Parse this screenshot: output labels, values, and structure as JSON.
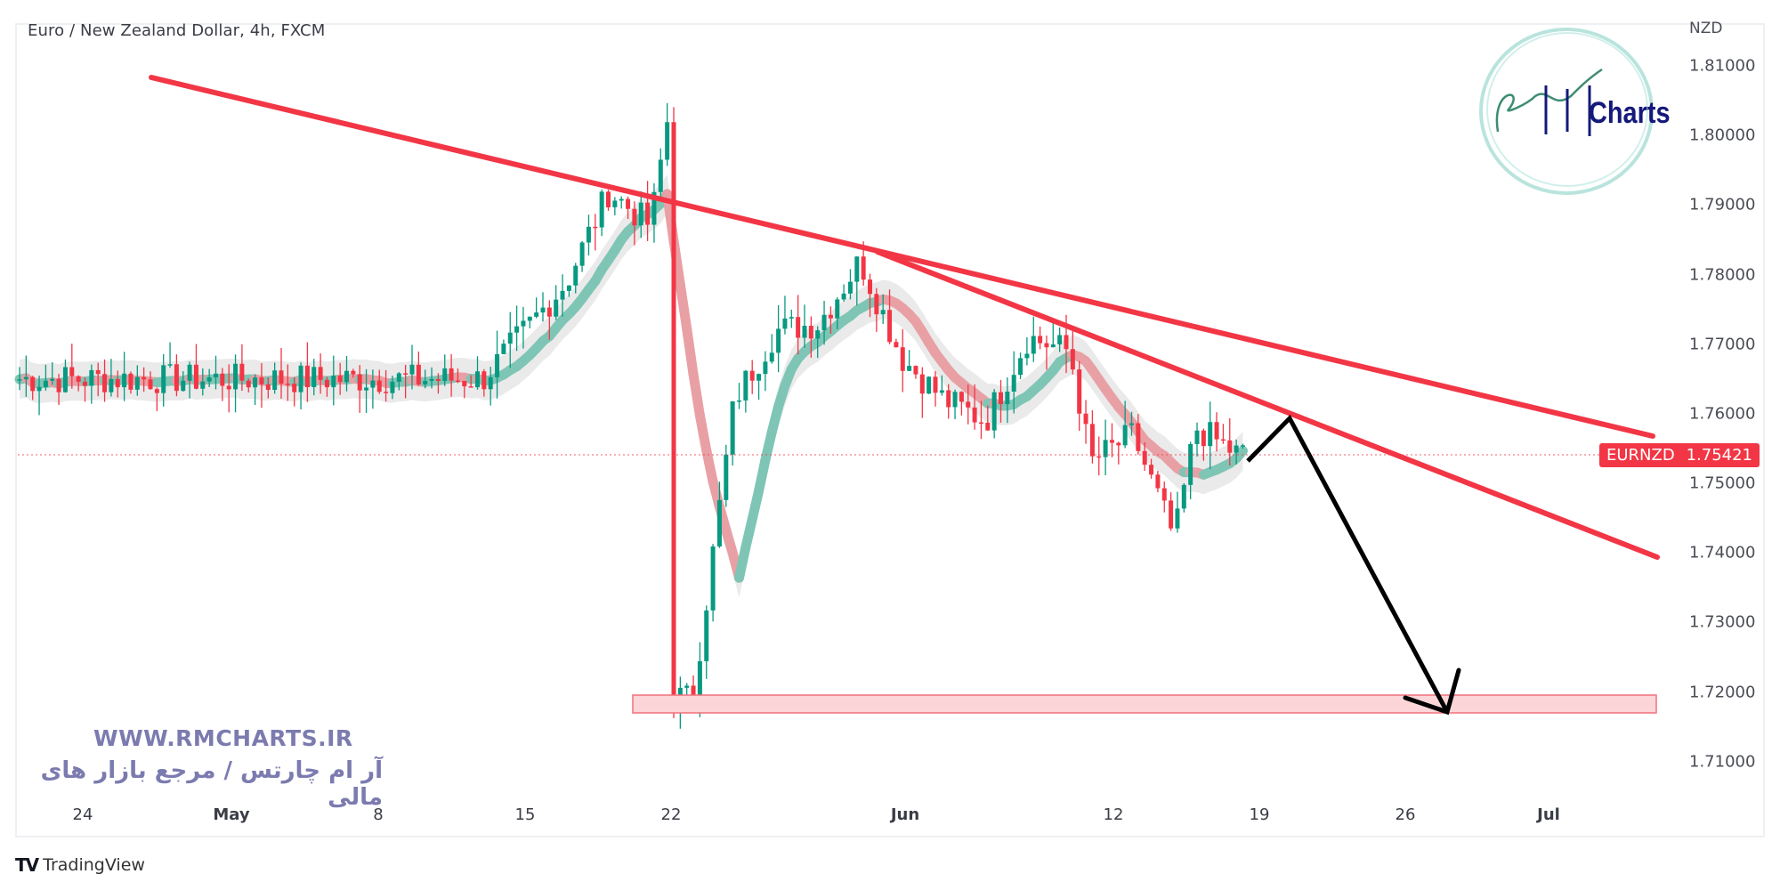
{
  "header": {
    "title": "Euro / New Zealand Dollar, 4h, FXCM",
    "symbol": "EURNZD",
    "interval": "4h",
    "exchange": "FXCM"
  },
  "price_axis": {
    "unit": "NZD",
    "ticks": [
      "1.81000",
      "1.80000",
      "1.79000",
      "1.78000",
      "1.77000",
      "1.76000",
      "1.75000",
      "1.74000",
      "1.73000",
      "1.72000",
      "1.71000"
    ]
  },
  "time_axis": {
    "ticks": [
      {
        "label": "24",
        "month": false
      },
      {
        "label": "May",
        "month": true
      },
      {
        "label": "8",
        "month": false
      },
      {
        "label": "15",
        "month": false
      },
      {
        "label": "22",
        "month": false
      },
      {
        "label": "Jun",
        "month": true
      },
      {
        "label": "12",
        "month": false
      },
      {
        "label": "19",
        "month": false
      },
      {
        "label": "26",
        "month": false
      },
      {
        "label": "Jul",
        "month": true
      }
    ]
  },
  "last_price": {
    "symbol": "EURNZD",
    "value": "1.75421"
  },
  "colors": {
    "up": "#089981",
    "down": "#f23645",
    "trendline": "#f23645",
    "projection": "#000000",
    "zone_fill": "#fcd5d9",
    "zone_border": "#f0707c",
    "watermark": "#7b7bb0",
    "logo_text": "#14197a",
    "logo_ring": "#a8ddd4"
  },
  "watermark": {
    "url": "WWW.RMCHARTS.IR",
    "tagline": "آر ام چارتس / مرجع بازار های مالی"
  },
  "logo": {
    "text": "Charts"
  },
  "footer": {
    "brand": "TradingView"
  },
  "chart_data": {
    "type": "candlestick",
    "title": "Euro / New Zealand Dollar, 4h, FXCM",
    "xlabel": "",
    "ylabel": "NZD",
    "ylim": [
      1.705,
      1.812
    ],
    "x_ticks": [
      "24",
      "May",
      "8",
      "15",
      "22",
      "Jun",
      "12",
      "19",
      "26",
      "Jul"
    ],
    "last_price": 1.75421,
    "price_path_keypoints": [
      {
        "date": "Apr 20",
        "price": 1.765
      },
      {
        "date": "Apr 24",
        "price": 1.779
      },
      {
        "date": "Apr 26",
        "price": 1.792
      },
      {
        "date": "Apr 28",
        "price": 1.787
      },
      {
        "date": "Apr 29",
        "price": 1.806
      },
      {
        "date": "May 1",
        "price": 1.795
      },
      {
        "date": "May 3",
        "price": 1.78
      },
      {
        "date": "May 5",
        "price": 1.77
      },
      {
        "date": "May 6",
        "price": 1.776
      },
      {
        "date": "May 8",
        "price": 1.753
      },
      {
        "date": "May 10",
        "price": 1.738
      },
      {
        "date": "May 12",
        "price": 1.726
      },
      {
        "date": "May 13",
        "price": 1.723
      },
      {
        "date": "May 15",
        "price": 1.752
      },
      {
        "date": "May 17",
        "price": 1.742
      },
      {
        "date": "May 19",
        "price": 1.735
      },
      {
        "date": "May 21",
        "price": 1.72
      },
      {
        "date": "May 23",
        "price": 1.719
      },
      {
        "date": "May 25",
        "price": 1.762
      },
      {
        "date": "May 27",
        "price": 1.772
      },
      {
        "date": "May 29",
        "price": 1.773
      },
      {
        "date": "May 31",
        "price": 1.782
      },
      {
        "date": "Jun 2",
        "price": 1.768
      },
      {
        "date": "Jun 4",
        "price": 1.762
      },
      {
        "date": "Jun 6",
        "price": 1.759
      },
      {
        "date": "Jun 8",
        "price": 1.771
      },
      {
        "date": "Jun 10",
        "price": 1.769
      },
      {
        "date": "Jun 11",
        "price": 1.753
      },
      {
        "date": "Jun 13",
        "price": 1.757
      },
      {
        "date": "Jun 15",
        "price": 1.742
      },
      {
        "date": "Jun 16",
        "price": 1.758
      },
      {
        "date": "Jun 18",
        "price": 1.7542
      }
    ],
    "annotations": [
      {
        "type": "trendline",
        "label": "upper descending trendline",
        "from": {
          "date": "Apr 28",
          "price": 1.808
        },
        "to": {
          "date": "Jul 5",
          "price": 1.7565
        }
      },
      {
        "type": "trendline",
        "label": "lower descending trendline",
        "from": {
          "date": "May 31",
          "price": 1.7835
        },
        "to": {
          "date": "Jul 5",
          "price": 1.7395
        }
      },
      {
        "type": "zone",
        "label": "support zone",
        "price_low": 1.7168,
        "price_high": 1.7195,
        "from": "May 20",
        "to": "Jul 5"
      },
      {
        "type": "projection",
        "label": "projected path",
        "points": [
          {
            "date": "Jun 18",
            "price": 1.7535
          },
          {
            "date": "Jun 20",
            "price": 1.7597
          },
          {
            "date": "Jun 28",
            "price": 1.7172
          }
        ]
      }
    ],
    "indicators": [
      {
        "name": "smoothed moving average ribbon",
        "colors": [
          "#089981",
          "#f23645"
        ],
        "band": "#e0e0e0"
      }
    ],
    "grid": false,
    "legend": "none"
  }
}
